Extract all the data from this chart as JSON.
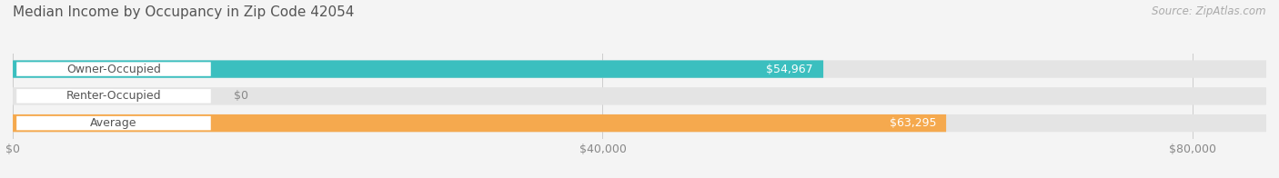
{
  "title": "Median Income by Occupancy in Zip Code 42054",
  "source": "Source: ZipAtlas.com",
  "categories": [
    "Owner-Occupied",
    "Renter-Occupied",
    "Average"
  ],
  "values": [
    54967,
    0,
    63295
  ],
  "bar_colors": [
    "#3bbfbf",
    "#c9a8d4",
    "#f5a94e"
  ],
  "bar_labels": [
    "$54,967",
    "$0",
    "$63,295"
  ],
  "x_ticks": [
    0,
    40000,
    80000
  ],
  "x_tick_labels": [
    "$0",
    "$40,000",
    "$80,000"
  ],
  "xlim_max": 85000,
  "background_color": "#f4f4f4",
  "bar_background_color": "#e4e4e4",
  "label_fontsize": 9,
  "title_fontsize": 11,
  "source_fontsize": 8.5
}
